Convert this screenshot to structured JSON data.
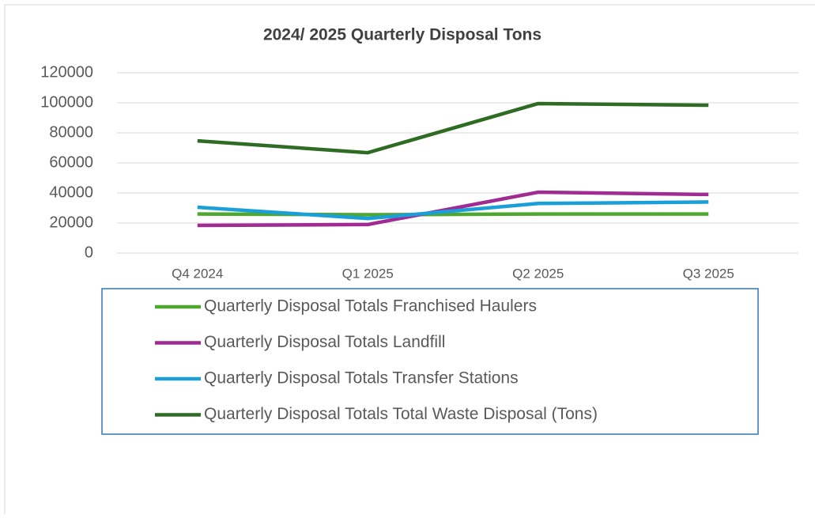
{
  "chart_data": {
    "type": "line",
    "title": "2024/ 2025 Quarterly Disposal Tons",
    "categories": [
      "Q4 2024",
      "Q1 2025",
      "Q2 2025",
      "Q3 2025"
    ],
    "series": [
      {
        "name": "Quarterly Disposal Totals Franchised Haulers",
        "color": "#4ea72e",
        "values": [
          26000,
          25500,
          26000,
          26000
        ]
      },
      {
        "name": "Quarterly Disposal Totals Landfill",
        "color": "#a02b93",
        "values": [
          18400,
          19000,
          40500,
          39000
        ]
      },
      {
        "name": "Quarterly Disposal Totals Transfer Stations",
        "color": "#1a9fd8",
        "values": [
          30500,
          23000,
          33000,
          34000
        ]
      },
      {
        "name": "Quarterly Disposal Totals Total Waste Disposal (Tons)",
        "color": "#2e6b23",
        "values": [
          74700,
          66800,
          99500,
          98400
        ]
      }
    ],
    "ylim": [
      0,
      120000
    ],
    "yticks": [
      0,
      20000,
      40000,
      60000,
      80000,
      100000,
      120000
    ],
    "grid": true,
    "legend": "bottom"
  }
}
